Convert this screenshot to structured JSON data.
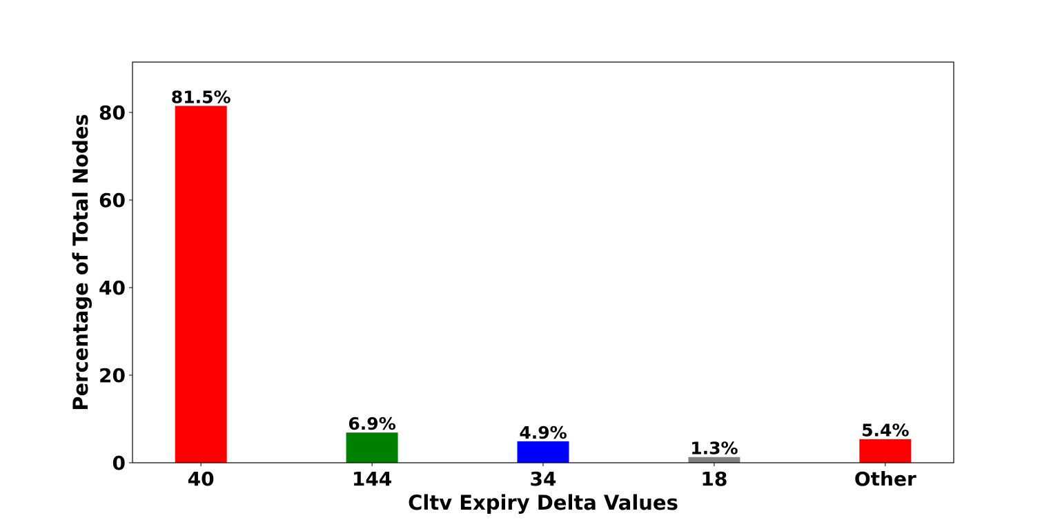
{
  "chart_data": {
    "type": "bar",
    "title": "",
    "xlabel": "Cltv Expiry Delta Values",
    "ylabel": "Percentage of Total Nodes",
    "categories": [
      "40",
      "144",
      "34",
      "18",
      "Other"
    ],
    "values": [
      81.5,
      6.9,
      4.9,
      1.3,
      5.4
    ],
    "data_labels": [
      "81.5%",
      "6.9%",
      "4.9%",
      "1.3%",
      "5.4%"
    ],
    "colors": [
      "#ff0000",
      "#008000",
      "#0000ff",
      "#808080",
      "#ff0000"
    ],
    "ylim": [
      0,
      91.5
    ],
    "yticks": [
      0,
      20,
      40,
      60,
      80
    ],
    "grid": false,
    "legend": "none"
  }
}
